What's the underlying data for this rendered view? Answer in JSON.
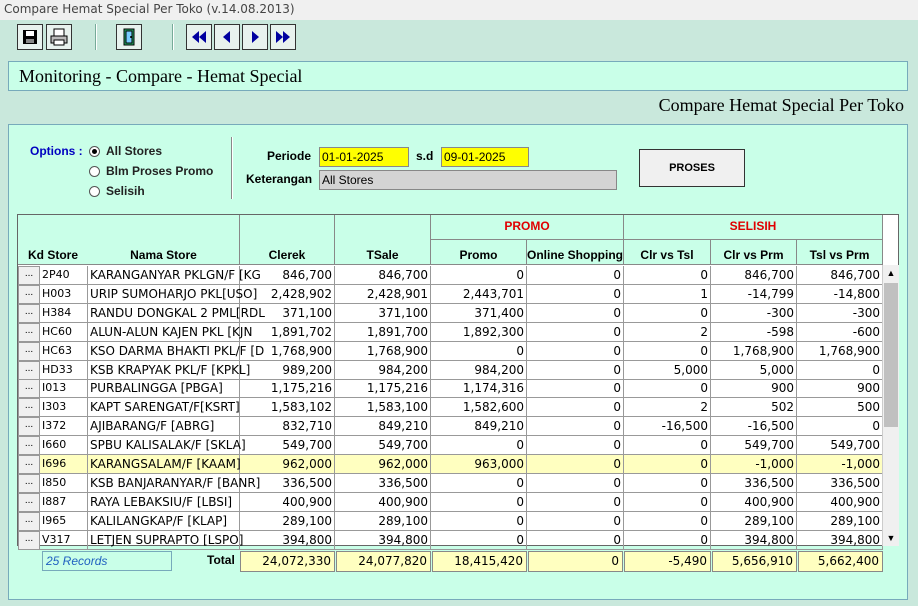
{
  "window": {
    "title": "Compare Hemat Special Per Toko (v.14.08.2013)"
  },
  "toolbar": {
    "buttons": [
      "save-icon",
      "print-icon",
      "exit-door-icon",
      "first-record-icon",
      "prev-record-icon",
      "next-record-icon",
      "last-record-icon"
    ]
  },
  "header": {
    "title": "Monitoring - Compare - Hemat Special",
    "subtitle": "Compare Hemat Special Per Toko"
  },
  "options": {
    "label": "Options :",
    "items": [
      {
        "label": "All Stores",
        "checked": true
      },
      {
        "label": "Blm Proses Promo",
        "checked": false
      },
      {
        "label": "Selisih",
        "checked": false
      }
    ]
  },
  "periode": {
    "label": "Periode",
    "from": "01-01-2025",
    "sd_label": "s.d",
    "to": "09-01-2025"
  },
  "keterangan": {
    "label": "Keterangan",
    "value": "All Stores"
  },
  "proses_label": "PROSES",
  "grid": {
    "group_promo": "PROMO",
    "group_selisih": "SELISIH",
    "columns": {
      "kd_store": "Kd Store",
      "nama_store": "Nama Store",
      "clerek": "Clerek",
      "tsale": "TSale",
      "promo": "Promo",
      "online": "Online Shopping",
      "clr_tsl": "Clr vs Tsl",
      "clr_prm": "Clr vs Prm",
      "tsl_prm": "Tsl vs Prm"
    },
    "rows": [
      {
        "btn": "...",
        "kd": "2P40",
        "nama": "KARANGANYAR PKLGN/F [KG",
        "clerek": "846,700",
        "tsale": "846,700",
        "promo": "0",
        "online": "0",
        "clr_tsl": "0",
        "clr_prm": "846,700",
        "tsl_prm": "846,700"
      },
      {
        "btn": "...",
        "kd": "H003",
        "nama": "URIP SUMOHARJO PKL[USO]",
        "clerek": "2,428,902",
        "tsale": "2,428,901",
        "promo": "2,443,701",
        "online": "0",
        "clr_tsl": "1",
        "clr_prm": "-14,799",
        "tsl_prm": "-14,800"
      },
      {
        "btn": "...",
        "kd": "H384",
        "nama": "RANDU DONGKAL 2 PML[RDL",
        "clerek": "371,100",
        "tsale": "371,100",
        "promo": "371,400",
        "online": "0",
        "clr_tsl": "0",
        "clr_prm": "-300",
        "tsl_prm": "-300"
      },
      {
        "btn": "...",
        "kd": "HC60",
        "nama": "ALUN-ALUN KAJEN PKL [KJN",
        "clerek": "1,891,702",
        "tsale": "1,891,700",
        "promo": "1,892,300",
        "online": "0",
        "clr_tsl": "2",
        "clr_prm": "-598",
        "tsl_prm": "-600"
      },
      {
        "btn": "...",
        "kd": "HC63",
        "nama": "KSO DARMA BHAKTI PKL/F [D",
        "clerek": "1,768,900",
        "tsale": "1,768,900",
        "promo": "0",
        "online": "0",
        "clr_tsl": "0",
        "clr_prm": "1,768,900",
        "tsl_prm": "1,768,900"
      },
      {
        "btn": "...",
        "kd": "HD33",
        "nama": "KSB KRAPYAK PKL/F [KPKL]",
        "clerek": "989,200",
        "tsale": "984,200",
        "promo": "984,200",
        "online": "0",
        "clr_tsl": "5,000",
        "clr_prm": "5,000",
        "tsl_prm": "0"
      },
      {
        "btn": "...",
        "kd": "I013",
        "nama": "PURBALINGGA [PBGA]",
        "clerek": "1,175,216",
        "tsale": "1,175,216",
        "promo": "1,174,316",
        "online": "0",
        "clr_tsl": "0",
        "clr_prm": "900",
        "tsl_prm": "900"
      },
      {
        "btn": "...",
        "kd": "I303",
        "nama": "KAPT SARENGAT/F[KSRT]",
        "clerek": "1,583,102",
        "tsale": "1,583,100",
        "promo": "1,582,600",
        "online": "0",
        "clr_tsl": "2",
        "clr_prm": "502",
        "tsl_prm": "500"
      },
      {
        "btn": "...",
        "kd": "I372",
        "nama": "AJIBARANG/F [ABRG]",
        "clerek": "832,710",
        "tsale": "849,210",
        "promo": "849,210",
        "online": "0",
        "clr_tsl": "-16,500",
        "clr_prm": "-16,500",
        "tsl_prm": "0"
      },
      {
        "btn": "...",
        "kd": "I660",
        "nama": "SPBU KALISALAK/F [SKLA]",
        "clerek": "549,700",
        "tsale": "549,700",
        "promo": "0",
        "online": "0",
        "clr_tsl": "0",
        "clr_prm": "549,700",
        "tsl_prm": "549,700"
      },
      {
        "btn": "...",
        "kd": "I696",
        "nama": "KARANGSALAM/F [KAAM]",
        "clerek": "962,000",
        "tsale": "962,000",
        "promo": "963,000",
        "online": "0",
        "clr_tsl": "0",
        "clr_prm": "-1,000",
        "tsl_prm": "-1,000",
        "highlight": true
      },
      {
        "btn": "...",
        "kd": "I850",
        "nama": "KSB BANJARANYAR/F [BANR]",
        "clerek": "336,500",
        "tsale": "336,500",
        "promo": "0",
        "online": "0",
        "clr_tsl": "0",
        "clr_prm": "336,500",
        "tsl_prm": "336,500"
      },
      {
        "btn": "...",
        "kd": "I887",
        "nama": "RAYA LEBAKSIU/F [LBSI]",
        "clerek": "400,900",
        "tsale": "400,900",
        "promo": "0",
        "online": "0",
        "clr_tsl": "0",
        "clr_prm": "400,900",
        "tsl_prm": "400,900"
      },
      {
        "btn": "...",
        "kd": "I965",
        "nama": "KALILANGKAP/F [KLAP]",
        "clerek": "289,100",
        "tsale": "289,100",
        "promo": "0",
        "online": "0",
        "clr_tsl": "0",
        "clr_prm": "289,100",
        "tsl_prm": "289,100"
      },
      {
        "btn": "...",
        "kd": "V317",
        "nama": "LETJEN SUPRAPTO [LSPO]",
        "clerek": "394,800",
        "tsale": "394,800",
        "promo": "0",
        "online": "0",
        "clr_tsl": "0",
        "clr_prm": "394,800",
        "tsl_prm": "394,800"
      }
    ]
  },
  "footer": {
    "records": "25 Records",
    "total_label": "Total",
    "totals": {
      "clerek": "24,072,330",
      "tsale": "24,077,820",
      "promo": "18,415,420",
      "online": "0",
      "clr_tsl": "-5,490",
      "clr_prm": "5,656,910",
      "tsl_prm": "5,662,400"
    }
  },
  "colors": {
    "background": "#c9e8dc",
    "panel": "#c9ffe8",
    "highlight": "#ffff00",
    "accent_red": "#e00000",
    "link_blue": "#0000c0"
  }
}
